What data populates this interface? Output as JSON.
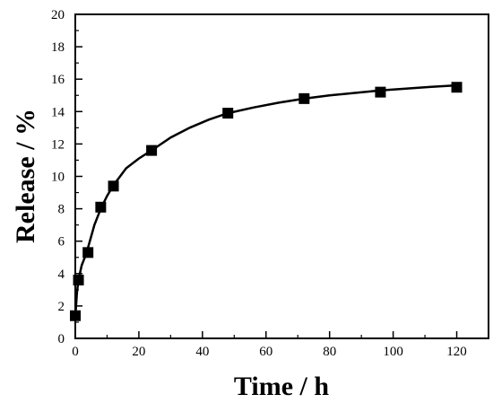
{
  "chart_data": {
    "type": "scatter",
    "xlabel": "Time / h",
    "ylabel": "Release / %",
    "xlim": [
      0,
      130
    ],
    "ylim": [
      0,
      20
    ],
    "xticks": [
      0,
      20,
      40,
      60,
      80,
      100,
      120
    ],
    "yticks": [
      0,
      2,
      4,
      6,
      8,
      10,
      12,
      14,
      16,
      18,
      20
    ],
    "grid": false,
    "legend": "none",
    "series": [
      {
        "marker": "square",
        "color": "#000000",
        "x": [
          0,
          1,
          4,
          8,
          12,
          24,
          48,
          72,
          96,
          120
        ],
        "y": [
          1.4,
          3.6,
          5.3,
          8.1,
          9.4,
          11.6,
          13.9,
          14.8,
          15.2,
          15.5
        ]
      }
    ],
    "fit_curve": {
      "type": "line",
      "color": "#000000",
      "x": [
        0,
        0.5,
        1,
        2,
        3,
        4,
        6,
        8,
        10,
        12,
        16,
        20,
        24,
        30,
        36,
        42,
        48,
        56,
        64,
        72,
        80,
        88,
        96,
        104,
        112,
        120
      ],
      "y": [
        1.3,
        2.8,
        3.6,
        4.5,
        5.0,
        5.6,
        7.0,
        8.0,
        8.8,
        9.45,
        10.5,
        11.1,
        11.6,
        12.4,
        13.0,
        13.5,
        13.9,
        14.25,
        14.55,
        14.8,
        15.0,
        15.15,
        15.3,
        15.42,
        15.53,
        15.62
      ]
    }
  }
}
